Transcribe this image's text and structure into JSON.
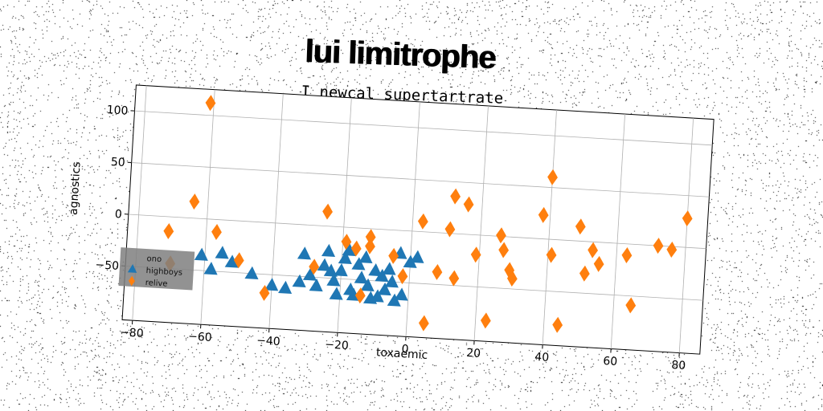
{
  "chart_data": {
    "type": "scatter",
    "title": "lui limitrophe",
    "subtitle": "I newcal supertartrate",
    "xlabel": "toxaemic",
    "ylabel": "agnostics",
    "xlim": [
      -83,
      86
    ],
    "ylim": [
      -102,
      125
    ],
    "x_ticks": [
      -80,
      -60,
      -40,
      -20,
      0,
      20,
      40,
      60,
      80
    ],
    "y_ticks": [
      -50,
      0,
      50,
      100
    ],
    "grid": true,
    "legend": {
      "position": "lower-left",
      "entries": [
        "ono",
        "highboys",
        "relive"
      ]
    },
    "series": [
      {
        "name": "ono",
        "marker": "none",
        "color": "#555555",
        "points": []
      },
      {
        "name": "highboys",
        "marker": "triangle",
        "color": "#1f77b4",
        "points": [
          [
            -61,
            -35
          ],
          [
            -58,
            -48
          ],
          [
            -55,
            -32
          ],
          [
            -52,
            -40
          ],
          [
            -46,
            -50
          ],
          [
            -40,
            -60
          ],
          [
            -36,
            -62
          ],
          [
            -32,
            -55
          ],
          [
            -29,
            -48
          ],
          [
            -27,
            -58
          ],
          [
            -25,
            -38
          ],
          [
            -23,
            -43
          ],
          [
            -22,
            -52
          ],
          [
            -20,
            -42
          ],
          [
            -19,
            -30
          ],
          [
            -18,
            -22
          ],
          [
            -17,
            -60
          ],
          [
            -15,
            -35
          ],
          [
            -14,
            -48
          ],
          [
            -13,
            -28
          ],
          [
            -12,
            -55
          ],
          [
            -10,
            -40
          ],
          [
            -9,
            -65
          ],
          [
            -8,
            -45
          ],
          [
            -7,
            -58
          ],
          [
            -5,
            -50
          ],
          [
            -4,
            -68
          ],
          [
            -21,
            -65
          ],
          [
            -16,
            -65
          ],
          [
            -11,
            -67
          ],
          [
            -6,
            -38
          ],
          [
            -2,
            -62
          ],
          [
            0,
            -30
          ],
          [
            2,
            -25
          ],
          [
            -24,
            -24
          ],
          [
            -31,
            -28
          ],
          [
            -3,
            -22
          ]
        ]
      },
      {
        "name": "relive",
        "marker": "diamond",
        "color": "#ff7f0e",
        "points": [
          [
            -61,
            112
          ],
          [
            -64,
            16
          ],
          [
            -71,
            -14
          ],
          [
            -57,
            -12
          ],
          [
            -50,
            -38
          ],
          [
            -70,
            -45
          ],
          [
            -42,
            -68
          ],
          [
            -28,
            -40
          ],
          [
            -25,
            14
          ],
          [
            -19,
            -14
          ],
          [
            -16,
            -20
          ],
          [
            -14,
            -65
          ],
          [
            -12,
            -8
          ],
          [
            -12,
            -17
          ],
          [
            -5,
            -25
          ],
          [
            -2,
            -44
          ],
          [
            3,
            10
          ],
          [
            5,
            -88
          ],
          [
            8,
            -38
          ],
          [
            11,
            4
          ],
          [
            12,
            36
          ],
          [
            13,
            -43
          ],
          [
            16,
            29
          ],
          [
            19,
            -19
          ],
          [
            23,
            -82
          ],
          [
            26,
            1
          ],
          [
            27,
            -13
          ],
          [
            29,
            -32
          ],
          [
            30,
            -40
          ],
          [
            38,
            23
          ],
          [
            40,
            60
          ],
          [
            41,
            -15
          ],
          [
            44,
            -82
          ],
          [
            49,
            14
          ],
          [
            51,
            -31
          ],
          [
            53,
            -8
          ],
          [
            55,
            -21
          ],
          [
            63,
            -11
          ],
          [
            65,
            -59
          ],
          [
            72,
            0
          ],
          [
            76,
            -3
          ],
          [
            80,
            28
          ]
        ]
      }
    ]
  }
}
